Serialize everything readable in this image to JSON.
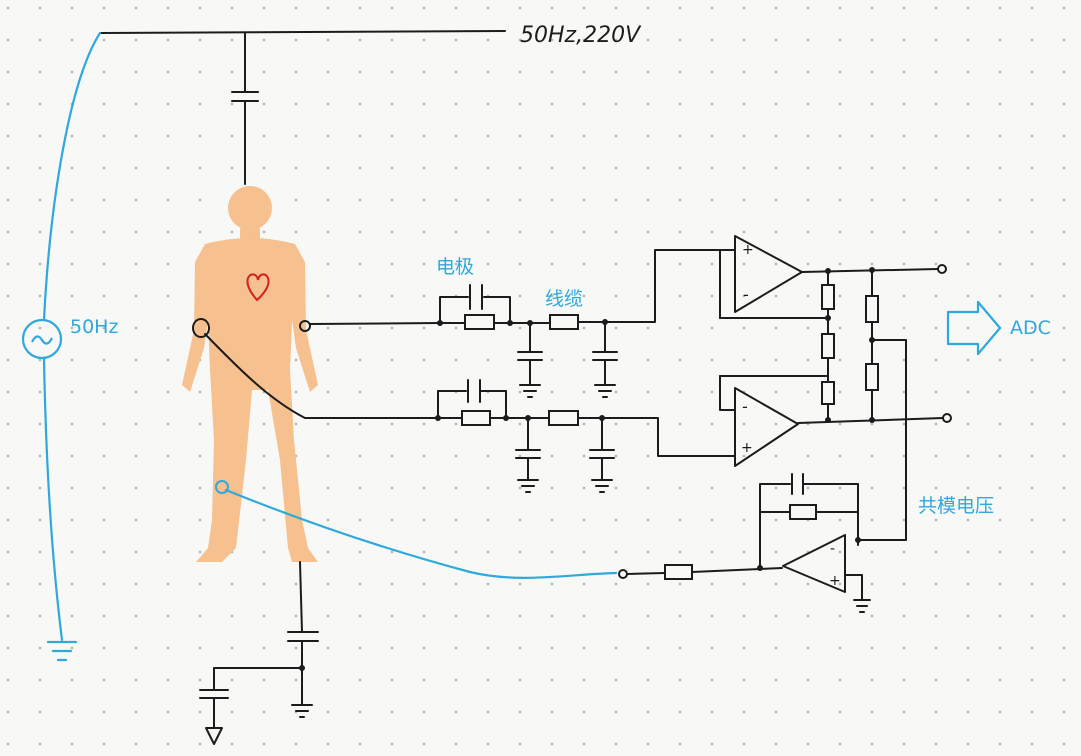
{
  "labels": {
    "mains": "50Hz,220V",
    "source_freq": "50Hz",
    "electrode": "电极",
    "cable": "线缆",
    "adc": "ADC",
    "common_mode_voltage": "共模电压"
  },
  "opamp_pins": {
    "minus": "-",
    "plus": "+"
  },
  "colors": {
    "ink": "#1c1c1c",
    "highlight": "#2fa8dc",
    "skin": "#f6c18e",
    "heart": "#d62020",
    "grid_dot": "#b9b9b9"
  },
  "icons": {
    "source": "ac-source-icon",
    "body": "human-body-icon",
    "heart": "heart-icon",
    "ground": "ground-icon",
    "arrow": "arrow-right-icon"
  }
}
